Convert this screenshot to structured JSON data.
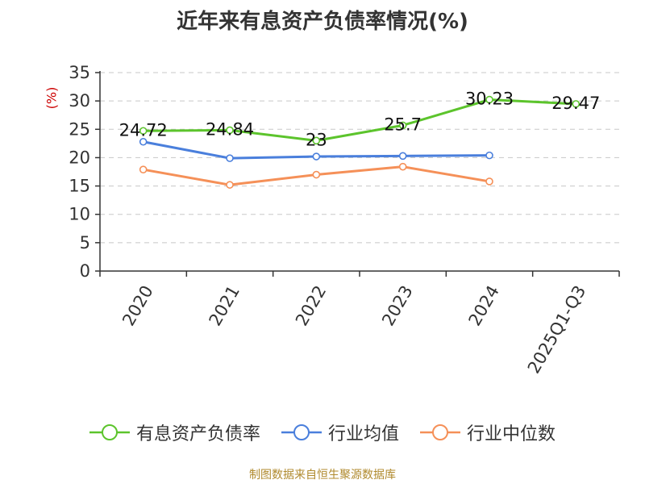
{
  "chart_data": {
    "type": "line",
    "title": "近年来有息资产负债率情况(%)",
    "ylabel": "(%)",
    "xlabel": "",
    "categories": [
      "2020",
      "2021",
      "2022",
      "2023",
      "2024",
      "2025Q1-Q3"
    ],
    "ylim": [
      0,
      35
    ],
    "yticks": [
      0,
      5,
      10,
      15,
      20,
      25,
      30,
      35
    ],
    "grid": true,
    "legend_position": "bottom",
    "series": [
      {
        "name": "有息资产负债率",
        "color": "#5cc42c",
        "values": [
          24.72,
          24.84,
          23,
          25.7,
          30.23,
          29.47
        ],
        "labels": [
          "24.72",
          "24.84",
          "23",
          "25.7",
          "30.23",
          "29.47"
        ]
      },
      {
        "name": "行业均值",
        "color": "#4a7fdc",
        "values": [
          22.8,
          19.9,
          20.2,
          20.3,
          20.4,
          null
        ]
      },
      {
        "name": "行业中位数",
        "color": "#f59058",
        "values": [
          17.9,
          15.2,
          17.0,
          18.4,
          15.8,
          null
        ]
      }
    ]
  },
  "source": "制图数据来自恒生聚源数据库"
}
